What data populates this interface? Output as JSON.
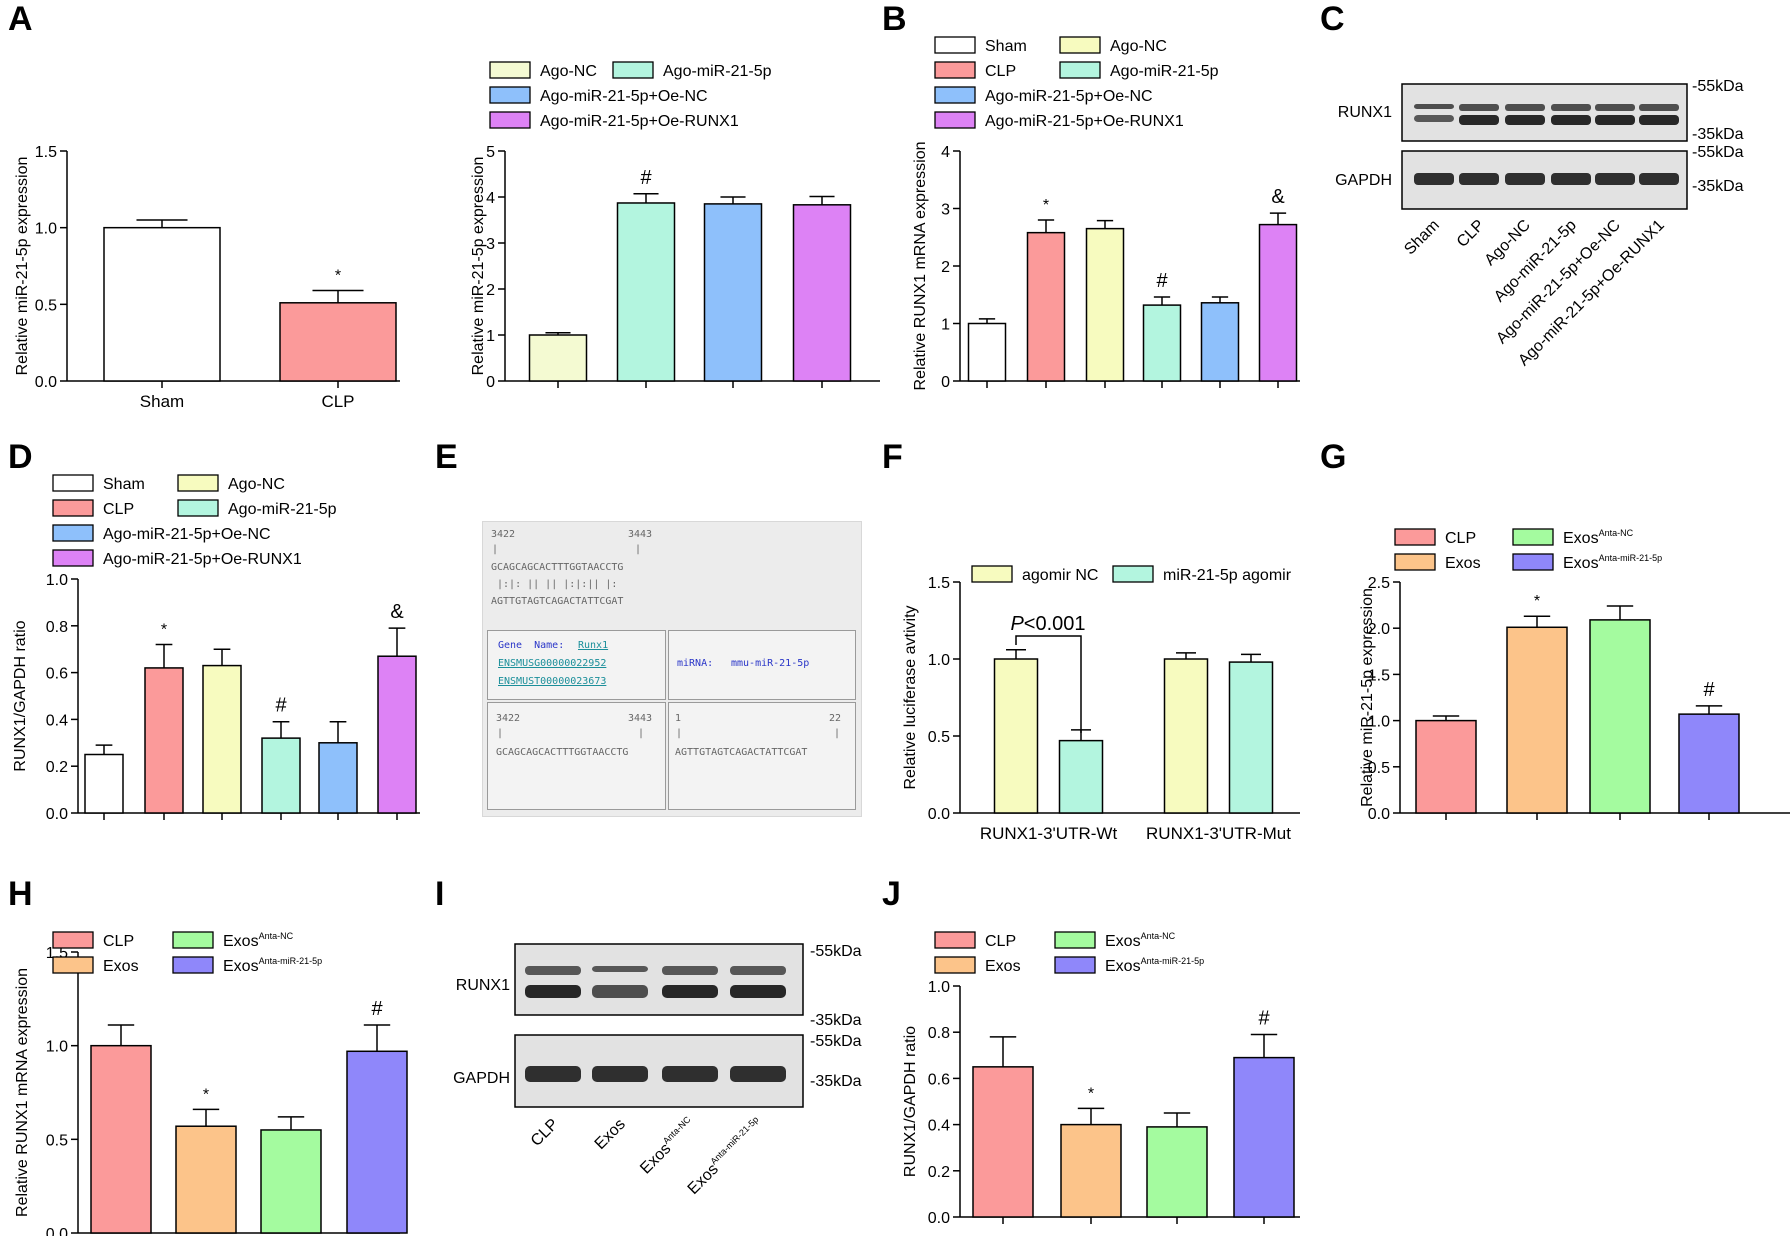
{
  "colors": {
    "sham": "#ffffff",
    "clp": "#fb9a9a",
    "agonc": "#f7fbbf",
    "ago215p": "#b3f5df",
    "oenc": "#8ec0fb",
    "oerunx": "#dd82f5",
    "exos": "#fcc48a",
    "exosnc": "#a4fb9f",
    "exosanta": "#8f87fa",
    "panelA2_agonc": "#f4fad2",
    "blot": "#1c1c1c",
    "bg_blot": "#e2e2e2"
  },
  "panels": {
    "A": "A",
    "B": "B",
    "C": "C",
    "D": "D",
    "E": "E",
    "F": "F",
    "G": "G",
    "H": "H",
    "I": "I",
    "J": "J"
  },
  "chart_data": [
    {
      "id": "A1",
      "type": "bar",
      "panel": "A",
      "categories": [
        "Sham",
        "CLP"
      ],
      "values": [
        1.0,
        0.51
      ],
      "errors": [
        0.05,
        0.08
      ],
      "ylabel": "Relative miR-21-5p expression",
      "ylim": [
        0,
        1.5
      ],
      "yticks": [
        "0.0",
        "0.5",
        "1.0",
        "1.5"
      ],
      "annotations": [
        "",
        "*"
      ]
    },
    {
      "id": "A2",
      "type": "bar",
      "panel": "A",
      "legend": [
        "Ago-NC",
        "Ago-miR-21-5p",
        "Ago-miR-21-5p+Oe-NC",
        "Ago-miR-21-5p+Oe-RUNX1"
      ],
      "values": [
        1.0,
        3.87,
        3.85,
        3.83
      ],
      "errors": [
        0.05,
        0.2,
        0.15,
        0.18
      ],
      "ylabel": "Relative miR-21-5p expression",
      "ylim": [
        0,
        5
      ],
      "yticks": [
        "0",
        "1",
        "2",
        "3",
        "4",
        "5"
      ],
      "annotations": [
        "",
        "#",
        "",
        ""
      ]
    },
    {
      "id": "B",
      "type": "bar",
      "panel": "B",
      "legend": [
        "Sham",
        "Ago-NC",
        "CLP",
        "Ago-miR-21-5p",
        "Ago-miR-21-5p+Oe-NC",
        "Ago-miR-21-5p+Oe-RUNX1"
      ],
      "values": [
        1.0,
        2.58,
        2.65,
        1.32,
        1.36,
        2.72
      ],
      "errors": [
        0.08,
        0.22,
        0.14,
        0.14,
        0.1,
        0.2
      ],
      "ylabel": "Relative RUNX1 mRNA expression",
      "ylim": [
        0,
        4
      ],
      "yticks": [
        "0",
        "1",
        "2",
        "3",
        "4"
      ],
      "annotations": [
        "",
        "*",
        "",
        "#",
        "",
        "&"
      ]
    },
    {
      "id": "D",
      "type": "bar",
      "panel": "D",
      "legend": [
        "Sham",
        "Ago-NC",
        "CLP",
        "Ago-miR-21-5p",
        "Ago-miR-21-5p+Oe-NC",
        "Ago-miR-21-5p+Oe-RUNX1"
      ],
      "values": [
        0.25,
        0.62,
        0.63,
        0.32,
        0.3,
        0.67
      ],
      "errors": [
        0.04,
        0.1,
        0.07,
        0.07,
        0.09,
        0.12
      ],
      "ylabel": "RUNX1/GAPDH ratio",
      "ylim": [
        0,
        1.0
      ],
      "yticks": [
        "0.0",
        "0.2",
        "0.4",
        "0.6",
        "0.8",
        "1.0"
      ],
      "annotations": [
        "",
        "*",
        "",
        "#",
        "",
        "&"
      ]
    },
    {
      "id": "F",
      "type": "bar",
      "panel": "F",
      "legend": [
        "agomir NC",
        "miR-21-5p agomir"
      ],
      "categories": [
        "RUNX1-3'UTR-Wt",
        "RUNX1-3'UTR-Mut"
      ],
      "series": [
        {
          "name": "agomir NC",
          "values": [
            1.0,
            1.0
          ],
          "errors": [
            0.06,
            0.04
          ]
        },
        {
          "name": "miR-21-5p agomir",
          "values": [
            0.47,
            0.98
          ],
          "errors": [
            0.07,
            0.05
          ]
        }
      ],
      "ylabel": "Relative luciferase avtivity",
      "ylim": [
        0,
        1.5
      ],
      "yticks": [
        "0.0",
        "0.5",
        "1.0",
        "1.5"
      ],
      "pvalue": "P<0.001"
    },
    {
      "id": "G",
      "type": "bar",
      "panel": "G",
      "legend": [
        "CLP",
        "Exos",
        "Exos",
        "Exos"
      ],
      "legend_sup": [
        "",
        "",
        "Anta-NC",
        "Anta-miR-21-5p"
      ],
      "values": [
        1.0,
        2.01,
        2.09,
        1.07
      ],
      "errors": [
        0.05,
        0.12,
        0.15,
        0.09
      ],
      "ylabel": "Relative miR-21-5p expression",
      "ylim": [
        0,
        2.5
      ],
      "yticks": [
        "0.0",
        "0.5",
        "1.0",
        "1.5",
        "2.0",
        "2.5"
      ],
      "annotations": [
        "",
        "*",
        "",
        "#"
      ]
    },
    {
      "id": "H",
      "type": "bar",
      "panel": "H",
      "legend": [
        "CLP",
        "Exos",
        "Exos",
        "Exos"
      ],
      "legend_sup": [
        "",
        "",
        "Anta-NC",
        "Anta-miR-21-5p"
      ],
      "values": [
        1.0,
        0.57,
        0.55,
        0.97
      ],
      "errors": [
        0.11,
        0.09,
        0.07,
        0.14
      ],
      "ylabel": "Relative RUNX1 mRNA expression",
      "ylim": [
        0,
        1.5
      ],
      "yticks": [
        "0.0",
        "0.5",
        "1.0",
        "1.5"
      ],
      "annotations": [
        "",
        "*",
        "",
        "#"
      ]
    },
    {
      "id": "J",
      "type": "bar",
      "panel": "J",
      "legend": [
        "CLP",
        "Exos",
        "Exos",
        "Exos"
      ],
      "legend_sup": [
        "",
        "",
        "Anta-NC",
        "Anta-miR-21-5p"
      ],
      "values": [
        0.65,
        0.4,
        0.39,
        0.69
      ],
      "errors": [
        0.13,
        0.07,
        0.06,
        0.1
      ],
      "ylabel": "RUNX1/GAPDH ratio",
      "ylim": [
        0,
        1.0
      ],
      "yticks": [
        "0.0",
        "0.2",
        "0.4",
        "0.6",
        "0.8",
        "1.0"
      ],
      "annotations": [
        "",
        "*",
        "",
        "#"
      ]
    }
  ],
  "blotC": {
    "band1": "RUNX1",
    "band2": "GAPDH",
    "kda": [
      "-55kDa",
      "-35kDa",
      "-55kDa",
      "-35kDa"
    ],
    "lanes": [
      "Sham",
      "CLP",
      "Ago-NC",
      "Ago-miR-21-5p",
      "Ago-miR-21-5p+Oe-NC",
      "Ago-miR-21-5p+Oe-RUNX1"
    ]
  },
  "blotI": {
    "band1": "RUNX1",
    "band2": "GAPDH",
    "kda": [
      "-55kDa",
      "-35kDa",
      "-55kDa",
      "-35kDa"
    ],
    "lanes": [
      "CLP",
      "Exos",
      "Exos",
      "Exos"
    ],
    "lanes_sup": [
      "",
      "",
      "Anta-NC",
      "Anta-miR-21-5p"
    ]
  },
  "seqE": {
    "pos_start": "3422",
    "pos_end": "3443",
    "target": "GCAGCAGCACTTTGGTAACCTG",
    "pairing": " |:|: || || |:|:|| |: ",
    "mirna_seq": "AGTTGTAGTCAGACTATTCGAT",
    "gene_label": "Gene  Name:",
    "gene_name": "Runx1",
    "ens_gene": "ENSMUSG00000022952",
    "ens_tx": "ENSMUST00000023673",
    "mirna_label": "miRNA:",
    "mirna_name": "mmu-miR-21-5p",
    "site_start": "1",
    "site_end": "22",
    "bar": "|"
  }
}
